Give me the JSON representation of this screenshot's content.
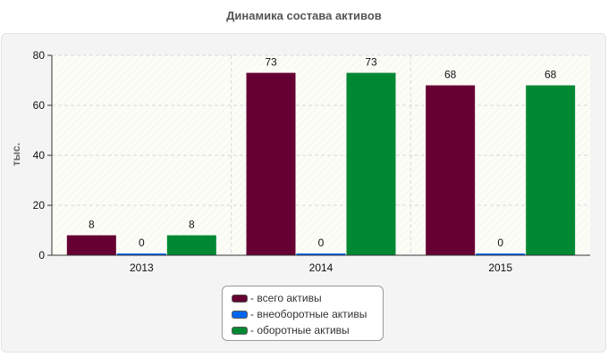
{
  "chart_data": {
    "type": "bar",
    "title": "Динамика состава активов",
    "ylabel": "тыс.",
    "xlabel": "",
    "categories": [
      "2013",
      "2014",
      "2015"
    ],
    "series": [
      {
        "name": "- всего активы",
        "color": "#660033",
        "values": [
          8,
          73,
          68
        ]
      },
      {
        "name": "- внеоборотные активы",
        "color": "#0066ee",
        "values": [
          0,
          0,
          0
        ]
      },
      {
        "name": "- оборотные активы",
        "color": "#008833",
        "values": [
          8,
          73,
          68
        ]
      }
    ],
    "ylim": [
      0,
      80
    ],
    "yticks": [
      0,
      20,
      40,
      60,
      80
    ],
    "grid": true,
    "legend_position": "bottom"
  }
}
